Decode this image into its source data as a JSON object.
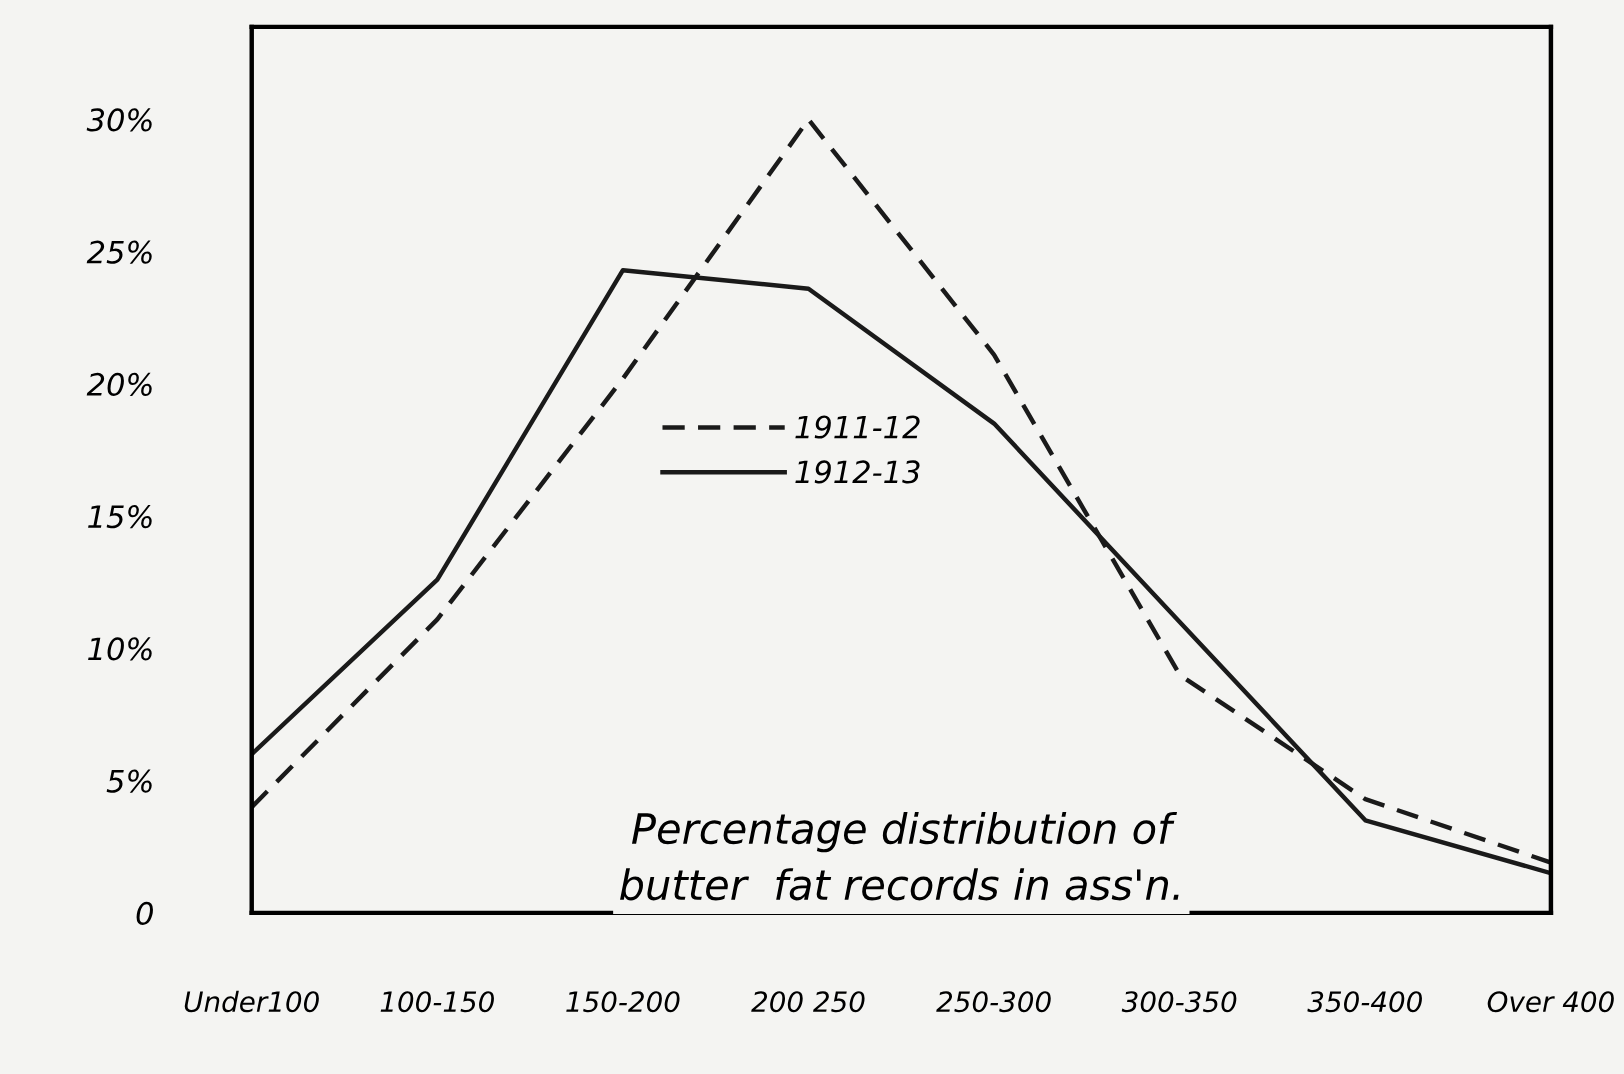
{
  "chart_data": {
    "type": "line",
    "categories": [
      "Under100",
      "100-150",
      "150-200",
      "200 250",
      "250-300",
      "300-350",
      "350-400",
      "Over 400"
    ],
    "series": [
      {
        "name": "1911-12",
        "color": "#1a1a1a",
        "line_style": "dashed",
        "values": [
          4.0,
          11.1,
          20.2,
          30.0,
          21.1,
          9.0,
          4.3,
          1.9
        ]
      },
      {
        "name": "1912-13",
        "color": "#1a1a1a",
        "line_style": "solid",
        "values": [
          6.0,
          12.6,
          24.3,
          23.6,
          18.5,
          11.0,
          3.5,
          1.5
        ]
      }
    ],
    "ylim": [
      0,
      33.5
    ],
    "yticks": [
      0,
      {
        "value": 5,
        "label": "5%"
      },
      {
        "value": 10,
        "label": "10%"
      },
      {
        "value": 15,
        "label": "15%"
      },
      {
        "value": 20,
        "label": "20%"
      },
      {
        "value": 25,
        "label": "25%"
      },
      {
        "value": 30,
        "label": "30%"
      }
    ],
    "annotations": [
      "Percentage distribution of\nbutter  fat records in ass'n."
    ],
    "legend": "center left",
    "grid": false,
    "marker": "none"
  }
}
